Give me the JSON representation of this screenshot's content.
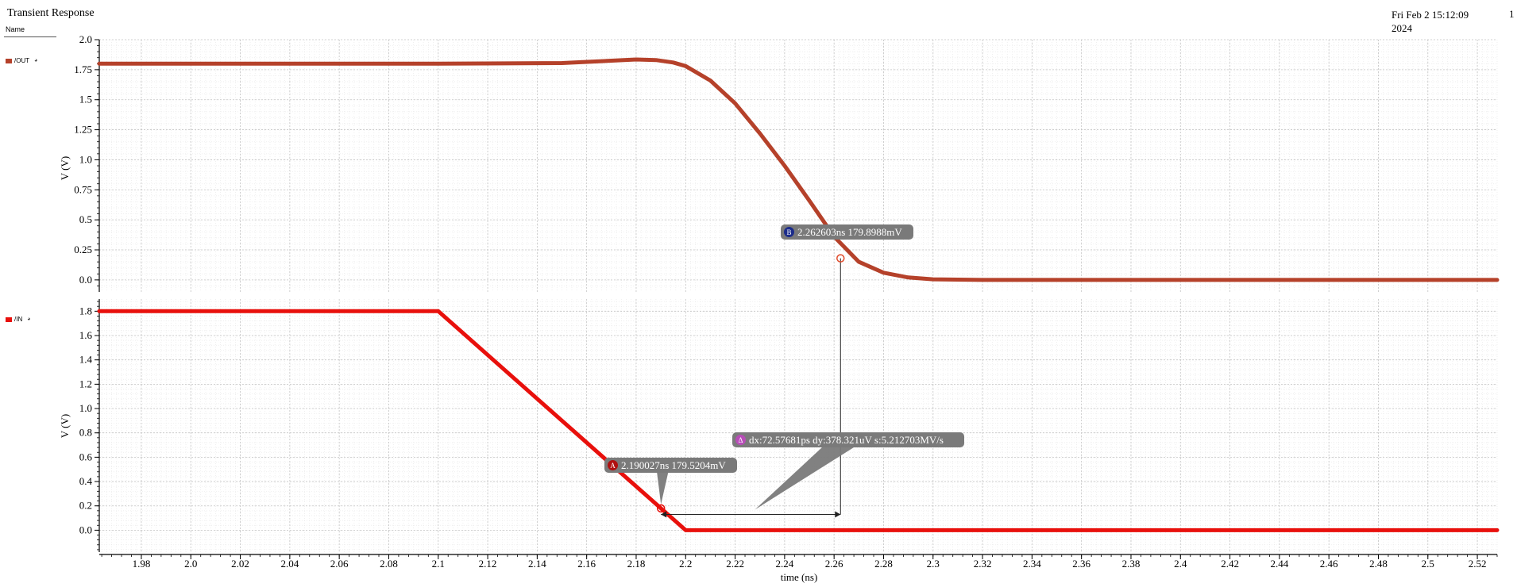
{
  "header": {
    "title": "Transient Response",
    "date_line1": "Fri Feb 2 15:12:09",
    "date_line2": "2024",
    "page": "1",
    "name_column": "Name"
  },
  "legend": [
    {
      "label": "/OUT",
      "color": "#b5412a"
    },
    {
      "label": "/IN",
      "color": "#e8100c"
    }
  ],
  "icons": {
    "visibility": "eye-icon"
  },
  "markers": {
    "A": {
      "label": "A",
      "text": "2.190027ns 179.5204mV",
      "x": 2.190027,
      "y": 0.1795
    },
    "B": {
      "label": "B",
      "text": "2.262603ns 179.8988mV",
      "x": 2.262603,
      "y": 0.1799
    },
    "delta": {
      "label": "Δ",
      "text": "dx:72.57681ps dy:378.321uV s:5.212703MV/s"
    }
  },
  "chart_data": [
    {
      "type": "line",
      "title": "",
      "xlabel": "time (ns)",
      "ylabel": "V (V)",
      "xlim": [
        1.963,
        2.528
      ],
      "ylim": [
        -0.1,
        2.0
      ],
      "y_ticks": [
        0.0,
        0.25,
        0.5,
        0.75,
        1.0,
        1.25,
        1.5,
        1.75,
        2.0
      ],
      "y_tick_labels": [
        "0.0",
        "0.25",
        "0.5",
        "0.75",
        "1.0",
        "1.25",
        "1.5",
        "1.75",
        "2.0"
      ],
      "grid": true,
      "series": [
        {
          "name": "/OUT",
          "color": "#b5412a",
          "x": [
            1.963,
            2.1,
            2.15,
            2.17,
            2.18,
            2.188,
            2.195,
            2.2,
            2.21,
            2.22,
            2.23,
            2.24,
            2.25,
            2.26,
            2.27,
            2.28,
            2.29,
            2.3,
            2.32,
            2.35,
            2.4,
            2.45,
            2.5,
            2.528
          ],
          "y": [
            1.8,
            1.8,
            1.805,
            1.825,
            1.835,
            1.83,
            1.81,
            1.78,
            1.66,
            1.47,
            1.22,
            0.95,
            0.66,
            0.36,
            0.15,
            0.06,
            0.02,
            0.005,
            0.0,
            0.0,
            0.0,
            0.0,
            0.0,
            0.0
          ]
        }
      ]
    },
    {
      "type": "line",
      "title": "",
      "xlabel": "time (ns)",
      "ylabel": "V (V)",
      "xlim": [
        1.963,
        2.528
      ],
      "ylim": [
        -0.18,
        1.9
      ],
      "y_ticks": [
        0.0,
        0.2,
        0.4,
        0.6,
        0.8,
        1.0,
        1.2,
        1.4,
        1.6,
        1.8
      ],
      "y_tick_labels": [
        "0.0",
        "0.2",
        "0.4",
        "0.6",
        "0.8",
        "1.0",
        "1.2",
        "1.4",
        "1.6",
        "1.8"
      ],
      "grid": true,
      "x_ticks": [
        1.98,
        2.0,
        2.02,
        2.04,
        2.06,
        2.08,
        2.1,
        2.12,
        2.14,
        2.16,
        2.18,
        2.2,
        2.22,
        2.24,
        2.26,
        2.28,
        2.3,
        2.32,
        2.34,
        2.36,
        2.38,
        2.4,
        2.42,
        2.44,
        2.46,
        2.48,
        2.5,
        2.52
      ],
      "x_tick_labels": [
        "1.98",
        "2.0",
        "2.02",
        "2.04",
        "2.06",
        "2.08",
        "2.1",
        "2.12",
        "2.14",
        "2.16",
        "2.18",
        "2.2",
        "2.22",
        "2.24",
        "2.26",
        "2.28",
        "2.3",
        "2.32",
        "2.34",
        "2.36",
        "2.38",
        "2.4",
        "2.42",
        "2.44",
        "2.46",
        "2.48",
        "2.5",
        "2.52"
      ],
      "series": [
        {
          "name": "/IN",
          "color": "#e8100c",
          "x": [
            1.963,
            2.1,
            2.2,
            2.528
          ],
          "y": [
            1.8,
            1.8,
            0.0,
            0.0
          ]
        }
      ]
    }
  ]
}
